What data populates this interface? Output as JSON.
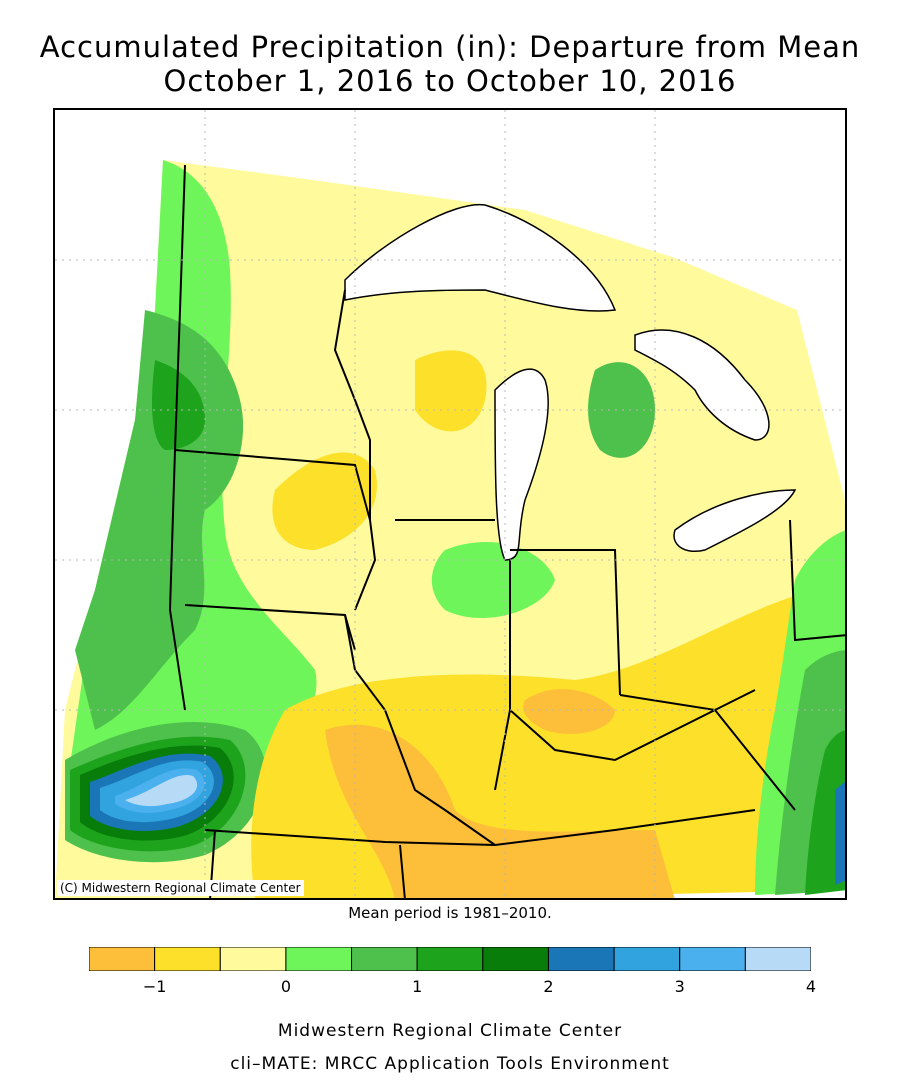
{
  "title_line1": "Accumulated Precipitation (in): Departure from Mean",
  "title_line2": "October 1, 2016 to October 10, 2016",
  "copyright": "(C) Midwestern Regional Climate Center",
  "mean_period": "Mean period is 1981–2010.",
  "legend": {
    "bins": [
      {
        "from": -1.5,
        "to": -1.0,
        "color": "#fdbf3a"
      },
      {
        "from": -1.0,
        "to": -0.5,
        "color": "#fde02a"
      },
      {
        "from": -0.5,
        "to": 0.0,
        "color": "#fffa9c"
      },
      {
        "from": 0.0,
        "to": 0.5,
        "color": "#6ef55a"
      },
      {
        "from": 0.5,
        "to": 1.0,
        "color": "#4ec14c"
      },
      {
        "from": 1.0,
        "to": 1.5,
        "color": "#1da41c"
      },
      {
        "from": 1.5,
        "to": 2.0,
        "color": "#087d0a"
      },
      {
        "from": 2.0,
        "to": 2.5,
        "color": "#1a76b6"
      },
      {
        "from": 2.5,
        "to": 3.0,
        "color": "#31a3df"
      },
      {
        "from": 3.0,
        "to": 3.5,
        "color": "#4ab0ee"
      },
      {
        "from": 3.5,
        "to": 4.0,
        "color": "#b7dbf7"
      }
    ],
    "ticks": [
      {
        "value": -1,
        "label": "−1"
      },
      {
        "value": 0,
        "label": "0"
      },
      {
        "value": 1,
        "label": "1"
      },
      {
        "value": 2,
        "label": "2"
      },
      {
        "value": 3,
        "label": "3"
      },
      {
        "value": 4,
        "label": "4"
      }
    ]
  },
  "footer_line1": "Midwestern Regional Climate Center",
  "footer_line2": "cli–MATE: MRCC Application Tools Environment"
}
